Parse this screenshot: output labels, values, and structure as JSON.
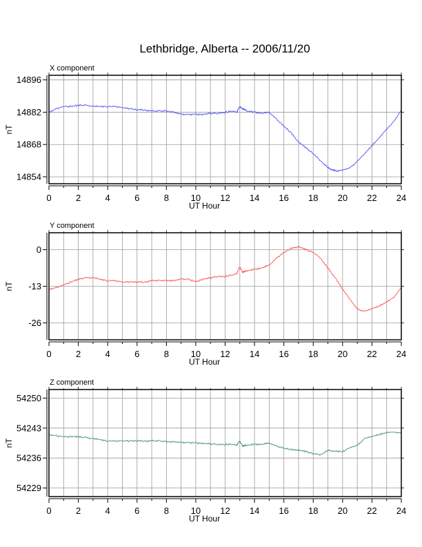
{
  "title": "Lethbridge, Alberta -- 2006/11/20",
  "chart_data": [
    {
      "type": "line",
      "panel_label": "X component",
      "xlabel": "UT Hour",
      "ylabel": "nT",
      "xlim": [
        0,
        24
      ],
      "ylim": [
        14851,
        14898
      ],
      "x_ticks": [
        0,
        2,
        4,
        6,
        8,
        10,
        12,
        14,
        16,
        18,
        20,
        22,
        24
      ],
      "y_ticks": [
        14854,
        14868,
        14882,
        14896
      ],
      "grid": true,
      "series": [
        {
          "color": "#3b3bff",
          "x": [
            0,
            0.5,
            1,
            1.5,
            2,
            2.5,
            3,
            3.5,
            4,
            4.5,
            5,
            5.5,
            6,
            6.5,
            7,
            7.5,
            8,
            8.5,
            9,
            9.5,
            10,
            10.5,
            11,
            11.5,
            12,
            12.5,
            12.8,
            13,
            13.2,
            13.5,
            14,
            14.5,
            15,
            15.5,
            16,
            16.5,
            17,
            17.5,
            18,
            18.5,
            19,
            19.3,
            19.6,
            20,
            20.5,
            21,
            21.5,
            22,
            22.5,
            23,
            23.5,
            24
          ],
          "values": [
            14882,
            14883.5,
            14884.5,
            14884.5,
            14885,
            14885,
            14884.5,
            14884.5,
            14884.5,
            14884.5,
            14884,
            14883.5,
            14883,
            14883,
            14882.5,
            14882.5,
            14882.5,
            14882,
            14881,
            14881,
            14881,
            14881,
            14881.5,
            14881.5,
            14882,
            14882.5,
            14882,
            14884.5,
            14883.5,
            14882.5,
            14882,
            14881.5,
            14882,
            14879,
            14876,
            14873,
            14869,
            14866.5,
            14864,
            14861,
            14858,
            14857,
            14856.5,
            14857,
            14858,
            14860.5,
            14864,
            14867.5,
            14871,
            14874.5,
            14878,
            14883
          ]
        }
      ]
    },
    {
      "type": "line",
      "panel_label": "Y component",
      "xlabel": "UT Hour",
      "ylabel": "nT",
      "xlim": [
        0,
        24
      ],
      "ylim": [
        -32,
        6
      ],
      "x_ticks": [
        0,
        2,
        4,
        6,
        8,
        10,
        12,
        14,
        16,
        18,
        20,
        22,
        24
      ],
      "y_ticks": [
        -26,
        -13,
        0
      ],
      "grid": true,
      "series": [
        {
          "color": "#ff3b3b",
          "x": [
            0,
            0.5,
            1,
            1.5,
            2,
            2.5,
            3,
            3.5,
            4,
            4.5,
            5,
            5.5,
            6,
            6.5,
            7,
            7.5,
            8,
            8.5,
            9,
            9.5,
            10,
            10.5,
            11,
            11.5,
            12,
            12.5,
            12.8,
            13,
            13.2,
            13.5,
            14,
            14.5,
            15,
            15.5,
            16,
            16.5,
            17,
            17.5,
            18,
            18.5,
            19,
            19.5,
            20,
            20.5,
            21,
            21.5,
            22,
            22.5,
            23,
            23.5,
            24
          ],
          "values": [
            -14,
            -13.5,
            -12.5,
            -11.5,
            -10.5,
            -10,
            -10,
            -10.5,
            -11,
            -11,
            -11.5,
            -11.5,
            -11.5,
            -11.5,
            -11,
            -11,
            -11,
            -11,
            -10.5,
            -10.5,
            -11.5,
            -10.5,
            -10,
            -9.5,
            -9.5,
            -9,
            -8.5,
            -6,
            -8,
            -7.5,
            -7,
            -6.5,
            -5.5,
            -3,
            -1,
            0.5,
            1,
            0,
            -1,
            -3,
            -6.5,
            -10,
            -14,
            -17.5,
            -21,
            -22,
            -21,
            -20,
            -18.5,
            -17,
            -13.5
          ]
        }
      ]
    },
    {
      "type": "line",
      "panel_label": "Z component",
      "xlabel": "UT Hour",
      "ylabel": "nT",
      "xlim": [
        0,
        24
      ],
      "ylim": [
        54227,
        54252
      ],
      "x_ticks": [
        0,
        2,
        4,
        6,
        8,
        10,
        12,
        14,
        16,
        18,
        20,
        22,
        24
      ],
      "y_ticks": [
        54229,
        54236,
        54243,
        54250
      ],
      "grid": true,
      "series": [
        {
          "color": "#2e8b57",
          "x": [
            0,
            0.5,
            1,
            1.5,
            2,
            2.5,
            3,
            3.5,
            4,
            4.5,
            5,
            5.5,
            6,
            6.5,
            7,
            7.5,
            8,
            8.5,
            9,
            9.5,
            10,
            10.5,
            11,
            11.5,
            12,
            12.5,
            12.8,
            13,
            13.2,
            13.5,
            14,
            14.5,
            15,
            15.5,
            16,
            16.5,
            17,
            17.5,
            18,
            18.5,
            19,
            19.5,
            20,
            20.5,
            21,
            21.5,
            22,
            22.5,
            23,
            23.5,
            24
          ],
          "values": [
            54241.5,
            54241.2,
            54241,
            54241,
            54241,
            54240.8,
            54240.5,
            54240.3,
            54240,
            54240,
            54240,
            54240,
            54240,
            54240,
            54240,
            54240,
            54239.8,
            54239.8,
            54239.6,
            54239.6,
            54239.5,
            54239.4,
            54239.3,
            54239.2,
            54239.2,
            54239.2,
            54239,
            54240,
            54238.8,
            54239,
            54239.2,
            54239.2,
            54239.5,
            54238.8,
            54238.3,
            54238,
            54237.8,
            54237.5,
            54237,
            54236.8,
            54237.8,
            54237.6,
            54237.5,
            54238.5,
            54239,
            54240.5,
            54241,
            54241.5,
            54242,
            54242,
            54241.8
          ]
        }
      ]
    }
  ]
}
